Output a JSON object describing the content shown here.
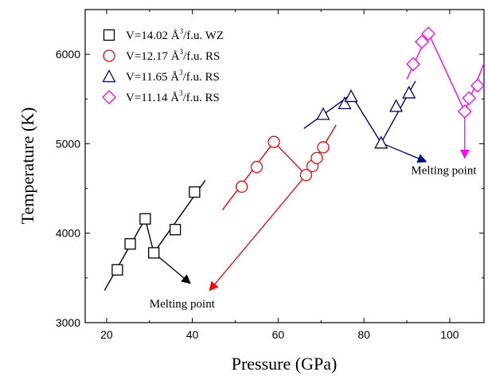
{
  "chart_data": {
    "type": "scatter",
    "title": "",
    "xlabel": "Pressure (GPa)",
    "ylabel": "Temperature (K)",
    "xlim": [
      15,
      108
    ],
    "ylim": [
      3000,
      6500
    ],
    "xticks": [
      "20",
      "40",
      "60",
      "80",
      "100"
    ],
    "xtick_values": [
      20,
      40,
      60,
      80,
      100
    ],
    "yticks": [
      "3000",
      "4000",
      "5000",
      "6000"
    ],
    "ytick_values": [
      3000,
      4000,
      5000,
      6000
    ],
    "grid": false,
    "legend_position": "top-left",
    "series": [
      {
        "name": "V=14.02 Å3/f.u. WZ",
        "legend_main": "V=14.02 Å",
        "legend_sup": "3",
        "legend_tail": "/f.u. WZ",
        "marker": "square",
        "color": "#000000",
        "x": [
          22.5,
          25.5,
          29,
          31,
          36,
          40.5
        ],
        "y": [
          3590,
          3880,
          4160,
          3780,
          4040,
          4460
        ],
        "segments": [
          [
            [
              19.5,
              3360
            ],
            [
              29,
              4160
            ]
          ],
          [
            [
              29,
              4160
            ],
            [
              31,
              3780
            ]
          ],
          [
            [
              31,
              3780
            ],
            [
              43,
              4590
            ]
          ]
        ],
        "arrow": [
          [
            31,
            3780
          ],
          [
            39.5,
            3440
          ]
        ]
      },
      {
        "name": "V=12.17 Å3/f.u. RS",
        "legend_main": "V=12.17 Å",
        "legend_sup": "3",
        "legend_tail": "/f.u. RS",
        "marker": "circle",
        "color": "#ff0000",
        "x": [
          51.5,
          55,
          59,
          66.5,
          68,
          69,
          70.5
        ],
        "y": [
          4520,
          4740,
          5020,
          4650,
          4750,
          4840,
          4960
        ],
        "segments": [
          [
            [
              47,
              4260
            ],
            [
              59,
              5020
            ]
          ],
          [
            [
              59,
              5020
            ],
            [
              66.5,
              4650
            ]
          ],
          [
            [
              66.5,
              4650
            ],
            [
              73.5,
              5210
            ]
          ]
        ],
        "arrow": [
          [
            66.5,
            4650
          ],
          [
            44,
            3360
          ]
        ]
      },
      {
        "name": "V=11.65 Å3/f.u. RS",
        "legend_main": "V=11.65 Å",
        "legend_sup": "3",
        "legend_tail": "/f.u. RS",
        "marker": "triangle",
        "color": "#000080",
        "x": [
          70.5,
          75.5,
          77,
          84,
          87.5,
          90.5
        ],
        "y": [
          5330,
          5450,
          5530,
          5010,
          5420,
          5570
        ],
        "segments": [
          [
            [
              66,
              5170
            ],
            [
              77,
              5550
            ]
          ],
          [
            [
              77,
              5550
            ],
            [
              84,
              5010
            ]
          ],
          [
            [
              84,
              5010
            ],
            [
              92,
              5700
            ]
          ]
        ],
        "arrow": [
          [
            84,
            5010
          ],
          [
            94.5,
            4800
          ]
        ]
      },
      {
        "name": "V=11.14 Å3/f.u. RS",
        "legend_main": "V=11.14 Å",
        "legend_sup": "3",
        "legend_tail": "/f.u. RS",
        "marker": "diamond",
        "color": "#ff00ff",
        "x": [
          91.5,
          93.5,
          95,
          103.5,
          104.5,
          106.5
        ],
        "y": [
          5890,
          6140,
          6230,
          5360,
          5510,
          5650
        ],
        "segments": [
          [
            [
              90,
              5720
            ],
            [
              95,
              6240
            ]
          ],
          [
            [
              95,
              6240
            ],
            [
              103.5,
              5360
            ]
          ],
          [
            [
              103.5,
              5360
            ],
            [
              108,
              5900
            ]
          ]
        ],
        "arrow": [
          [
            103.5,
            5360
          ],
          [
            103.5,
            4840
          ]
        ]
      }
    ],
    "annotations": [
      {
        "text": "Melting point",
        "x": 91,
        "y": 4660,
        "anchor": "start"
      },
      {
        "text": "Melting point",
        "x": 30,
        "y": 3170,
        "anchor": "start"
      }
    ]
  }
}
